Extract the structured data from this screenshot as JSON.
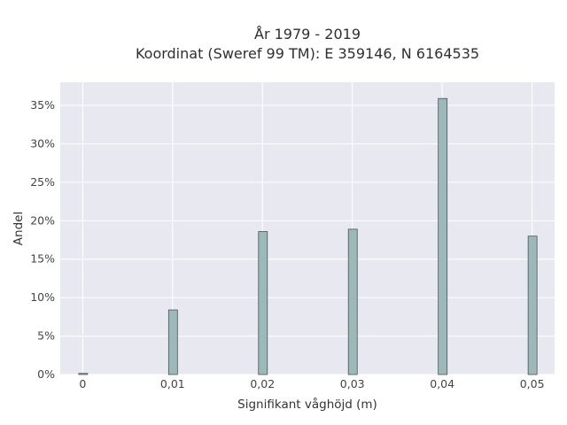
{
  "title": {
    "line1": "År 1979 - 2019",
    "line2": "Koordinat (Sweref 99 TM): E 359146, N 6164535"
  },
  "chart_data": {
    "type": "bar",
    "title": "År 1979 - 2019",
    "subtitle": "Koordinat (Sweref 99 TM): E 359146, N 6164535",
    "xlabel": "Signifikant våghöjd (m)",
    "ylabel": "Andel",
    "x": [
      0,
      0.01,
      0.02,
      0.03,
      0.04,
      0.05
    ],
    "values": [
      0.0015,
      0.084,
      0.186,
      0.189,
      0.359,
      0.18
    ],
    "xlim": [
      -0.0025,
      0.0525
    ],
    "ylim": [
      0,
      0.38
    ],
    "x_ticks": [
      {
        "value": 0,
        "label": "0"
      },
      {
        "value": 0.01,
        "label": "0,01"
      },
      {
        "value": 0.02,
        "label": "0,02"
      },
      {
        "value": 0.03,
        "label": "0,03"
      },
      {
        "value": 0.04,
        "label": "0,04"
      },
      {
        "value": 0.05,
        "label": "0,05"
      }
    ],
    "y_ticks": [
      {
        "value": 0,
        "label": "0%"
      },
      {
        "value": 0.05,
        "label": "5%"
      },
      {
        "value": 0.1,
        "label": "10%"
      },
      {
        "value": 0.15,
        "label": "15%"
      },
      {
        "value": 0.2,
        "label": "20%"
      },
      {
        "value": 0.25,
        "label": "25%"
      },
      {
        "value": 0.3,
        "label": "30%"
      },
      {
        "value": 0.35,
        "label": "35%"
      }
    ],
    "grid": true,
    "colors": {
      "bar_fill": "#9db8b8",
      "bar_stroke": "#4a5555",
      "plot_background": "#e8e8f0",
      "grid": "#ffffff"
    }
  }
}
